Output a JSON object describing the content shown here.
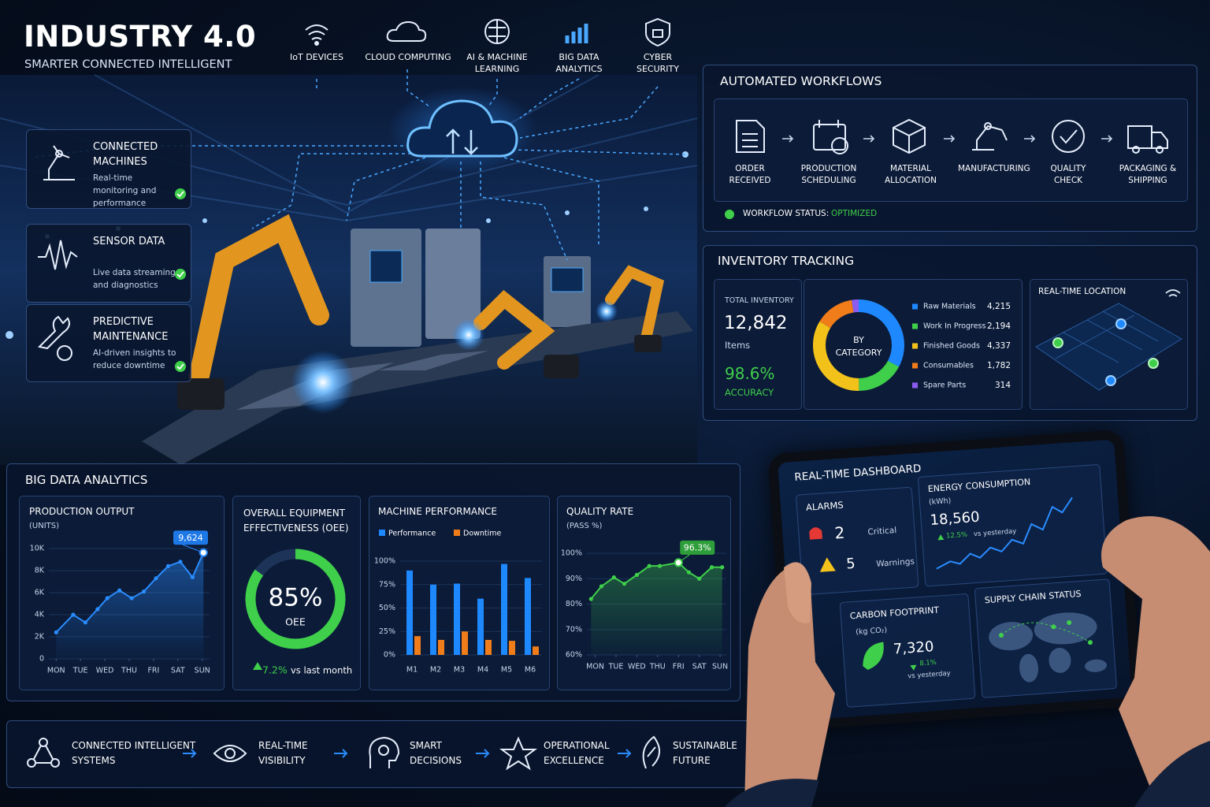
{
  "header": {
    "title": "INDUSTRY 4.0",
    "subtitle": "SMARTER CONNECTED INTELLIGENT"
  },
  "technologies": [
    "IoT DEVICES",
    "CLOUD COMPUTING",
    "AI & MACHINE LEARNING",
    "BIG DATA ANALYTICS",
    "CYBER SECURITY"
  ],
  "features": [
    {
      "title": "CONNECTED MACHINES",
      "text": "Real-time monitoring and performance"
    },
    {
      "title": "SENSOR DATA",
      "text": "Live data streaming and diagnostics"
    },
    {
      "title": "PREDICTIVE MAINTENANCE",
      "text": "AI-driven insights to reduce downtime"
    }
  ],
  "workflows": {
    "title": "AUTOMATED WORKFLOWS",
    "steps": [
      "ORDER RECEIVED",
      "PRODUCTION SCHEDULING",
      "MATERIAL ALLOCATION",
      "MANUFACTURING",
      "QUALITY CHECK",
      "PACKAGING & SHIPPING"
    ],
    "status_label": "WORKFLOW STATUS:",
    "status": "OPTIMIZED"
  },
  "inventory": {
    "title": "INVENTORY TRACKING",
    "total_label": "TOTAL INVENTORY",
    "total": "12,842",
    "total_unit": "Items",
    "accuracy": "98.6%",
    "accuracy_label": "ACCURACY",
    "location_title": "REAL-TIME LOCATION"
  },
  "analytics": {
    "title": "BIG DATA ANALYTICS"
  },
  "tablet": {
    "title": "REAL-TIME DASHBOARD",
    "alarms_title": "ALARMS",
    "critical_count": "2",
    "critical_label": "Critical",
    "warning_count": "5",
    "warning_label": "Warnings",
    "energy_title": "ENERGY CONSUMPTION",
    "energy_unit": "(kWh)",
    "energy_value": "18,560",
    "energy_change": "12.5%",
    "energy_change_note": "vs yesterday",
    "carbon_title": "CARBON FOOTPRINT",
    "carbon_unit": "(kg CO₂)",
    "carbon_value": "7,320",
    "carbon_change": "8.1%",
    "carbon_change_note": "vs yesterday",
    "supply_title": "SUPPLY CHAIN STATUS"
  },
  "benefits": [
    "CONNECTED INTELLIGENT SYSTEMS",
    "REAL-TIME VISIBILITY",
    "SMART DECISIONS",
    "OPERATIONAL EXCELLENCE",
    "SUSTAINABLE FUTURE"
  ],
  "chart_data": [
    {
      "type": "line",
      "title": "PRODUCTION OUTPUT",
      "subtitle": "(UNITS)",
      "color": "#2a8cff",
      "x": [
        0,
        0.7,
        1.2,
        1.7,
        2.1,
        2.6,
        3.1,
        3.6,
        4.1,
        4.6,
        5.1,
        5.6,
        6.05
      ],
      "values": [
        2400,
        4000,
        3300,
        4500,
        5500,
        6200,
        5500,
        6100,
        7300,
        8400,
        8800,
        7400,
        9624
      ],
      "value_labels": [
        null,
        null,
        null,
        null,
        null,
        null,
        null,
        null,
        null,
        null,
        null,
        null,
        "9,624"
      ],
      "xlim": [
        -0.3,
        6.3
      ],
      "xticks": [
        {
          "value": 0,
          "label": "MON"
        },
        {
          "value": 1,
          "label": "TUE"
        },
        {
          "value": 2,
          "label": "WED"
        },
        {
          "value": 3,
          "label": "THU"
        },
        {
          "value": 4,
          "label": "FRI"
        },
        {
          "value": 5,
          "label": "SAT"
        },
        {
          "value": 6,
          "label": "SUN"
        }
      ],
      "ylim": [
        0,
        10000
      ],
      "yticks": [
        0,
        {
          "value": 2000,
          "label": "2K"
        },
        {
          "value": 4000,
          "label": "4K"
        },
        {
          "value": 6000,
          "label": "6K"
        },
        {
          "value": 8000,
          "label": "8K"
        },
        {
          "value": 10000,
          "label": "10K"
        }
      ],
      "grid": true
    },
    {
      "type": "gauge",
      "title": "OVERALL EQUIPMENT EFFECTIVENESS (OEE)",
      "value": 85,
      "value_label": "85%",
      "label": "OEE",
      "ylim": [
        0,
        100
      ],
      "color": "#3fcf4a",
      "delta": "7.2%",
      "delta_note": "vs last month"
    },
    {
      "type": "bar",
      "title": "MACHINE PERFORMANCE",
      "categories": [
        "M1",
        "M2",
        "M3",
        "M4",
        "M5",
        "M6"
      ],
      "series": [
        {
          "name": "Performance",
          "color": "#1e88ff",
          "values": [
            90,
            75,
            76,
            60,
            97,
            82
          ]
        },
        {
          "name": "Downtime",
          "color": "#f07c1a",
          "values": [
            20,
            16,
            25,
            16,
            15,
            9
          ]
        }
      ],
      "ylim": [
        0,
        100
      ],
      "yticks": [
        {
          "value": 0,
          "label": "0%"
        },
        {
          "value": 25,
          "label": "25%"
        },
        {
          "value": 50,
          "label": "50%"
        },
        {
          "value": 75,
          "label": "75%"
        },
        {
          "value": 100,
          "label": "100%"
        }
      ],
      "grid": true
    },
    {
      "type": "line",
      "title": "QUALITY RATE",
      "subtitle": "(PASS %)",
      "color": "#3fcf4a",
      "x": [
        -0.2,
        0.3,
        0.9,
        1.4,
        2,
        2.6,
        3.1,
        4,
        4.5,
        5,
        5.6,
        6.1
      ],
      "values": [
        82,
        87,
        90.5,
        88,
        91.5,
        95,
        95,
        96.3,
        92.5,
        90,
        94.5,
        94.5
      ],
      "value_labels": [
        null,
        null,
        null,
        null,
        null,
        null,
        null,
        "96.3%",
        null,
        null,
        null,
        null
      ],
      "xlim": [
        -0.4,
        6.3
      ],
      "xticks": [
        {
          "value": 0,
          "label": "MON"
        },
        {
          "value": 1,
          "label": "TUE"
        },
        {
          "value": 2,
          "label": "WED"
        },
        {
          "value": 3,
          "label": "THU"
        },
        {
          "value": 4,
          "label": "FRI"
        },
        {
          "value": 5,
          "label": "SAT"
        },
        {
          "value": 6,
          "label": "SUN"
        }
      ],
      "ylim": [
        60,
        100
      ],
      "yticks": [
        {
          "value": 60,
          "label": "60%"
        },
        {
          "value": 70,
          "label": "70%"
        },
        {
          "value": 80,
          "label": "80%"
        },
        {
          "value": 90,
          "label": "90%"
        },
        {
          "value": 100,
          "label": "100%"
        }
      ],
      "grid": true
    },
    {
      "type": "donut",
      "title": "BY CATEGORY",
      "categories": [
        "Raw Materials",
        "Work In Progress",
        "Finished Goods",
        "Consumables",
        "Spare Parts"
      ],
      "values": [
        4215,
        2194,
        4337,
        1782,
        314
      ],
      "value_labels": [
        "4,215",
        "2,194",
        "4,337",
        "1,782",
        "314"
      ],
      "colors": [
        "#1e88ff",
        "#3fcf4a",
        "#f2c21b",
        "#f07c1a",
        "#8a5cf0"
      ]
    }
  ]
}
